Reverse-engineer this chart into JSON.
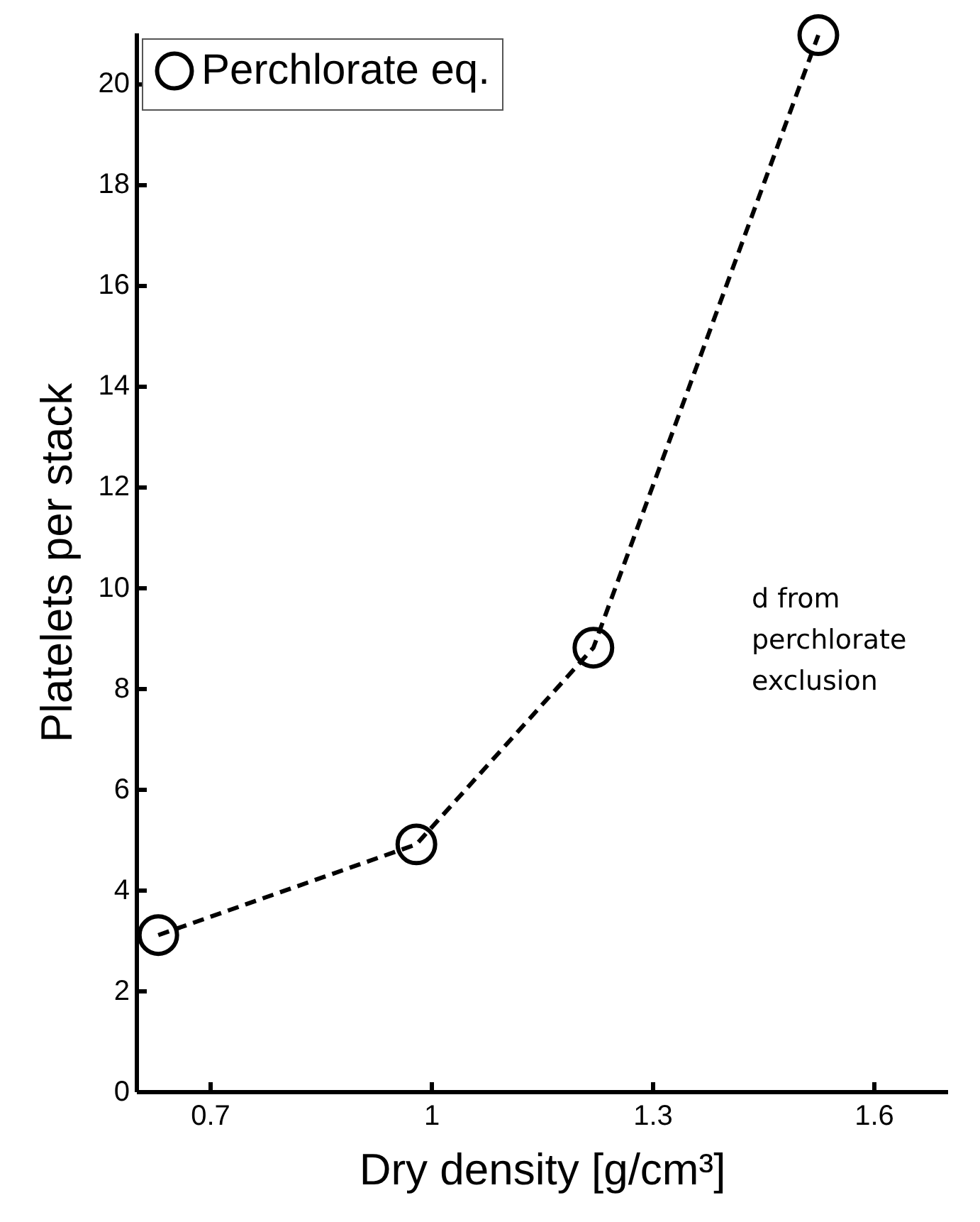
{
  "chart_data": {
    "type": "line",
    "xlabel": "Dry density [g/cm³]",
    "ylabel": "Platelets per stack",
    "x": [
      0.63,
      0.98,
      1.22,
      1.525
    ],
    "series": [
      {
        "name": "Perchlorate eq.",
        "color": "#000000",
        "values": [
          3.1,
          4.9,
          8.8,
          20.95
        ]
      }
    ],
    "xlim": [
      0.6,
      1.7
    ],
    "xticks": [
      0.7,
      1,
      1.3,
      1.6
    ],
    "ylim": [
      0,
      21
    ],
    "yticks": [
      0,
      2,
      4,
      6,
      8,
      10,
      12,
      14,
      16,
      18,
      20
    ],
    "marker": "circle",
    "line_style": "dashed",
    "legend": "top left",
    "grid": false,
    "annotations": [
      "d from perchlorate exclusion"
    ]
  }
}
